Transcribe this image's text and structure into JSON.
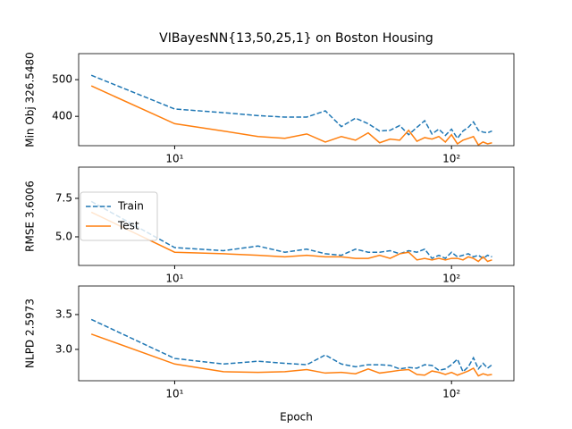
{
  "chart_data": [
    {
      "type": "line",
      "title": "VIBayesNN{13,50,25,1} on Boston Housing",
      "ylabel": "Min Obj 326.5480",
      "xscale": "log",
      "grid": false,
      "x": [
        5,
        10,
        15,
        20,
        25,
        30,
        35,
        40,
        45,
        50,
        55,
        60,
        65,
        70,
        75,
        80,
        85,
        90,
        95,
        100,
        105,
        110,
        115,
        120,
        125,
        130,
        135,
        140
      ],
      "xlim": [
        4.5,
        168
      ],
      "xticks": [
        {
          "value": 10,
          "label": "10¹"
        },
        {
          "value": 100,
          "label": "10²"
        }
      ],
      "ylim": [
        320,
        571
      ],
      "yticks": [
        400,
        500
      ],
      "series": [
        {
          "color": "#1f77b4",
          "linestyle": "dashed",
          "values": [
            512,
            420,
            410,
            402,
            398,
            398,
            415,
            372,
            395,
            380,
            360,
            362,
            375,
            350,
            370,
            388,
            352,
            365,
            348,
            365,
            340,
            360,
            370,
            385,
            362,
            357,
            355,
            360
          ]
        },
        {
          "color": "#ff7f0e",
          "linestyle": "solid",
          "values": [
            483,
            380,
            360,
            345,
            340,
            352,
            330,
            345,
            335,
            355,
            328,
            338,
            335,
            362,
            332,
            342,
            338,
            345,
            330,
            350,
            325,
            335,
            340,
            345,
            322,
            330,
            325,
            328
          ]
        }
      ]
    },
    {
      "type": "line",
      "ylabel": "RMSE 3.6006",
      "xscale": "log",
      "grid": false,
      "legend": "center left",
      "x": [
        5,
        10,
        15,
        20,
        25,
        30,
        35,
        40,
        45,
        50,
        55,
        60,
        65,
        70,
        75,
        80,
        85,
        90,
        95,
        100,
        105,
        110,
        115,
        120,
        125,
        130,
        135,
        140
      ],
      "xlim": [
        4.5,
        168
      ],
      "xticks": [
        {
          "value": 10,
          "label": "10¹"
        },
        {
          "value": 100,
          "label": "10²"
        }
      ],
      "ylim": [
        3.14,
        9.53
      ],
      "yticks": [
        {
          "value": 5,
          "label": "5.0"
        },
        {
          "value": 7.5,
          "label": "7.5"
        }
      ],
      "series": [
        {
          "name": "Train",
          "color": "#1f77b4",
          "linestyle": "dashed",
          "values": [
            7.3,
            4.3,
            4.1,
            4.4,
            4.0,
            4.2,
            3.9,
            3.8,
            4.2,
            4.0,
            4.0,
            4.1,
            3.9,
            4.1,
            4.0,
            4.2,
            3.6,
            3.8,
            3.6,
            4.0,
            3.7,
            3.8,
            3.9,
            3.7,
            3.8,
            3.6,
            3.8,
            3.7
          ]
        },
        {
          "name": "Test",
          "color": "#ff7f0e",
          "linestyle": "solid",
          "values": [
            6.6,
            4.0,
            3.9,
            3.8,
            3.7,
            3.8,
            3.7,
            3.7,
            3.6,
            3.6,
            3.8,
            3.6,
            3.9,
            4.0,
            3.5,
            3.6,
            3.5,
            3.6,
            3.5,
            3.6,
            3.6,
            3.5,
            3.7,
            3.6,
            3.4,
            3.7,
            3.4,
            3.5
          ]
        }
      ]
    },
    {
      "type": "line",
      "ylabel": "NLPD 2.5973",
      "xlabel": "Epoch",
      "xscale": "log",
      "grid": false,
      "x": [
        5,
        10,
        15,
        20,
        25,
        30,
        35,
        40,
        45,
        50,
        55,
        60,
        65,
        70,
        75,
        80,
        85,
        90,
        95,
        100,
        105,
        110,
        115,
        120,
        125,
        130,
        135,
        140
      ],
      "xlim": [
        4.5,
        168
      ],
      "xticks": [
        {
          "value": 10,
          "label": "10¹"
        },
        {
          "value": 100,
          "label": "10²"
        }
      ],
      "ylim": [
        2.55,
        3.91
      ],
      "yticks": [
        {
          "value": 3,
          "label": "3.0"
        },
        3.5
      ],
      "series": [
        {
          "color": "#1f77b4",
          "linestyle": "dashed",
          "values": [
            3.43,
            2.87,
            2.79,
            2.83,
            2.8,
            2.78,
            2.92,
            2.79,
            2.75,
            2.78,
            2.78,
            2.77,
            2.72,
            2.74,
            2.73,
            2.78,
            2.77,
            2.7,
            2.72,
            2.78,
            2.86,
            2.68,
            2.75,
            2.88,
            2.72,
            2.8,
            2.73,
            2.78
          ]
        },
        {
          "color": "#ff7f0e",
          "linestyle": "solid",
          "values": [
            3.22,
            2.79,
            2.68,
            2.67,
            2.68,
            2.71,
            2.66,
            2.67,
            2.65,
            2.72,
            2.66,
            2.68,
            2.7,
            2.71,
            2.64,
            2.63,
            2.69,
            2.67,
            2.64,
            2.67,
            2.63,
            2.66,
            2.69,
            2.73,
            2.62,
            2.65,
            2.63,
            2.64
          ]
        }
      ]
    }
  ]
}
